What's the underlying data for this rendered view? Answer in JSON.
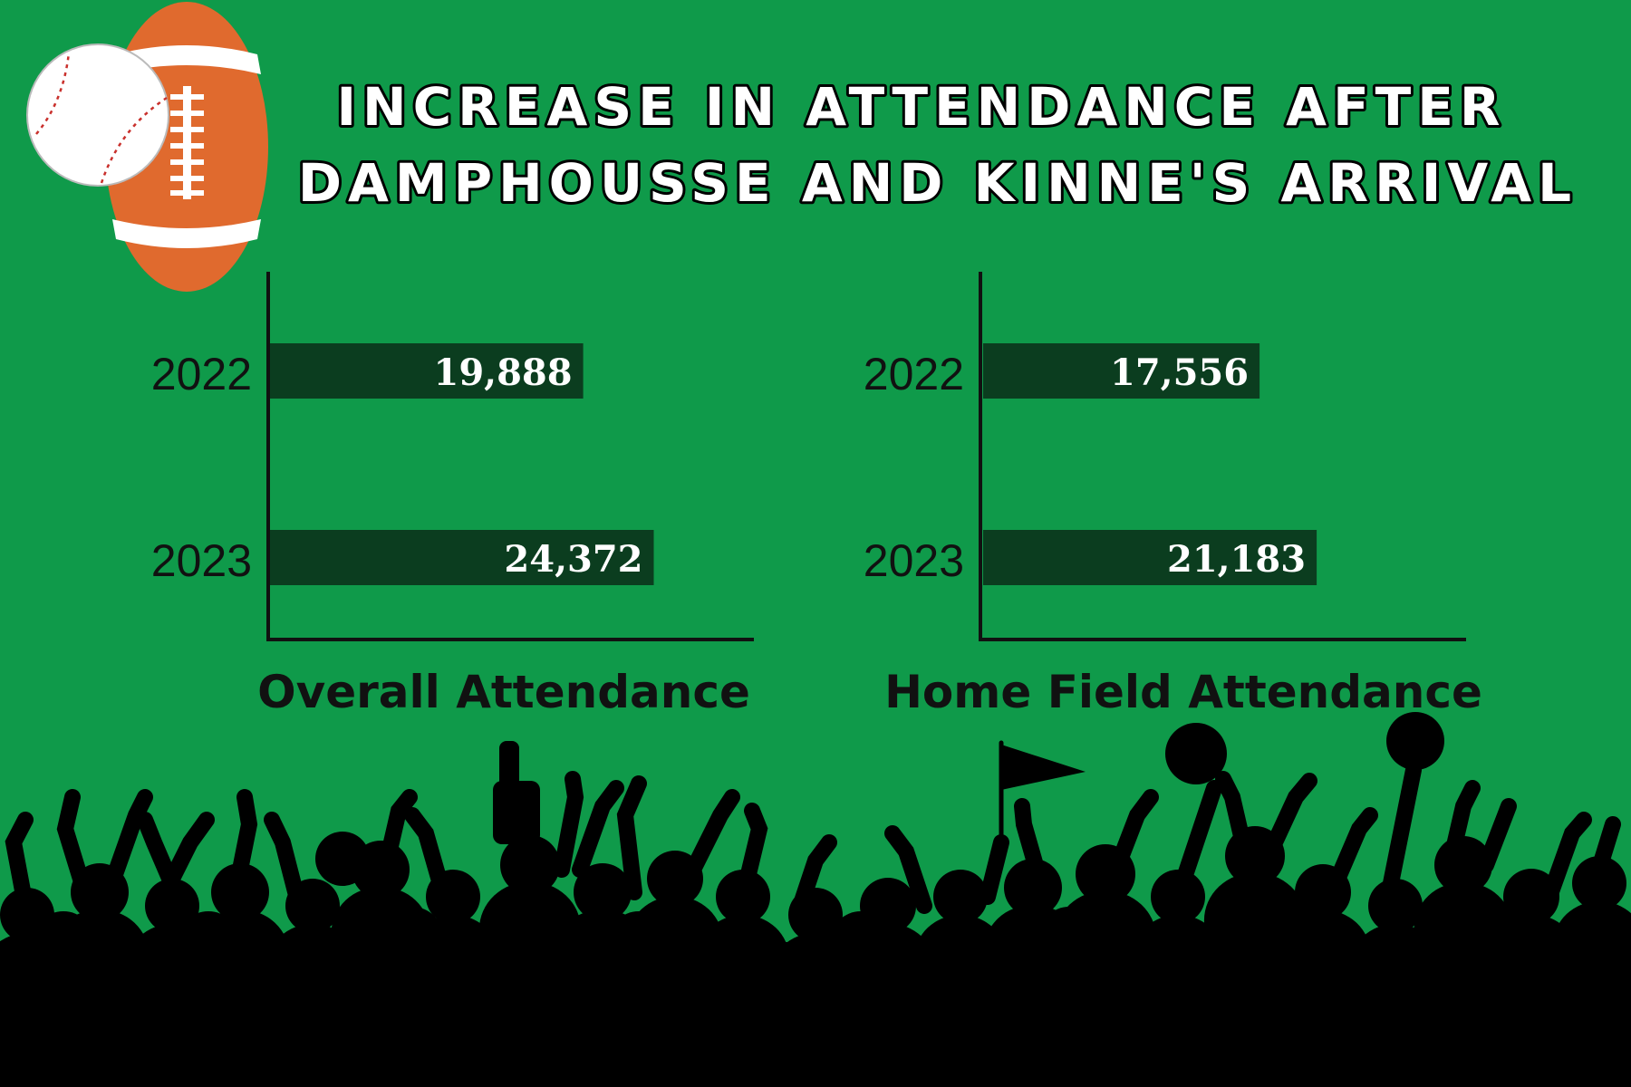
{
  "title": {
    "line1": "INCREASE IN ATTENDANCE AFTER",
    "line2": "DAMPHOUSSE AND KINNE'S ARRIVAL"
  },
  "colors": {
    "background": "#0f9a4a",
    "bar": "#0b3d1f",
    "football": "#e06a2e",
    "crowd": "#000000"
  },
  "icons": [
    "baseball-icon",
    "football-icon",
    "crowd-silhouette",
    "flag-icon",
    "pom-pom-icon"
  ],
  "chart_data": [
    {
      "type": "bar",
      "orientation": "horizontal",
      "title": "Overall Attendance",
      "categories": [
        "2022",
        "2023"
      ],
      "values": [
        19888,
        24372
      ],
      "value_labels": [
        "19,888",
        "24,372"
      ],
      "grid": false,
      "xlim": [
        0,
        39000
      ]
    },
    {
      "type": "bar",
      "orientation": "horizontal",
      "title": "Home Field Attendance",
      "categories": [
        "2022",
        "2023"
      ],
      "values": [
        17556,
        21183
      ],
      "value_labels": [
        "17,556",
        "21,183"
      ],
      "grid": false,
      "xlim": [
        0,
        39000
      ]
    }
  ]
}
